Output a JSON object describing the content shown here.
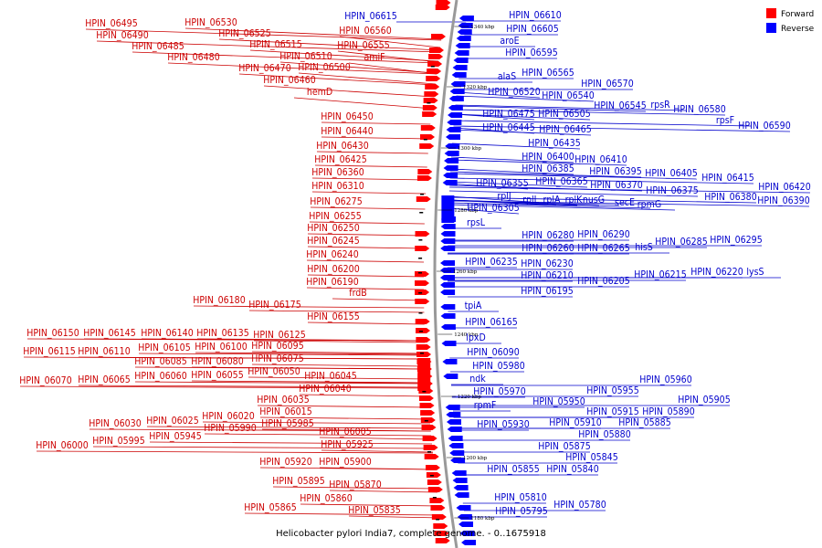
{
  "caption": "Helicobacter pylori India7, complete genome. - 0..1675918",
  "legend": [
    {
      "label": "Forward",
      "color": "#ff0000"
    },
    {
      "label": "Reverse",
      "color": "#0000ff"
    }
  ],
  "colors": {
    "forward": "#ff0000",
    "reverse": "#0000ff",
    "forward_text": "#cc0000",
    "reverse_text": "#0000cc",
    "backbone": "#999999"
  },
  "scale_labels": [
    "1340 kbp",
    "1320 kbp",
    "1300 kbp",
    "1280 kbp",
    "1260 kbp",
    "1240 kbp",
    "1220 kbp",
    "1200 kbp",
    "1180 kbp"
  ],
  "forward_labels": [
    "HPIN_06495",
    "HPIN_06530",
    "HPIN_06490",
    "HPIN_06525",
    "HPIN_06485",
    "HPIN_06515",
    "HPIN_06480",
    "HPIN_06510",
    "HPIN_06470",
    "HPIN_06500",
    "HPIN_06460",
    "hemD",
    "HPIN_06560",
    "HPIN_06555",
    "amiF",
    "HPIN_06450",
    "HPIN_06440",
    "HPIN_06430",
    "HPIN_06425",
    "HPIN_06360",
    "HPIN_06310",
    "HPIN_06275",
    "HPIN_06255",
    "HPIN_06250",
    "HPIN_06245",
    "HPIN_06240",
    "HPIN_06200",
    "HPIN_06190",
    "frdB",
    "HPIN_06180",
    "HPIN_06175",
    "HPIN_06155",
    "HPIN_06150",
    "HPIN_06145",
    "HPIN_06140",
    "HPIN_06135",
    "HPIN_06125",
    "HPIN_06115",
    "HPIN_06110",
    "HPIN_06105",
    "HPIN_06100",
    "HPIN_06095",
    "HPIN_06085",
    "HPIN_06080",
    "HPIN_06075",
    "HPIN_06070",
    "HPIN_06065",
    "HPIN_06060",
    "HPIN_06055",
    "HPIN_06050",
    "HPIN_06045",
    "HPIN_06040",
    "HPIN_06035",
    "HPIN_06020",
    "HPIN_06015",
    "HPIN_06030",
    "HPIN_06025",
    "HPIN_05990",
    "HPIN_05985",
    "HPIN_06000",
    "HPIN_05995",
    "HPIN_05945",
    "HPIN_06005",
    "HPIN_05925",
    "HPIN_05920",
    "HPIN_05900",
    "HPIN_05895",
    "HPIN_05870",
    "HPIN_05860",
    "HPIN_05865",
    "HPIN_05835"
  ],
  "reverse_labels": [
    "HPIN_06615",
    "HPIN_06610",
    "HPIN_06605",
    "aroE",
    "HPIN_06595",
    "HPIN_06565",
    "alaS",
    "HPIN_06570",
    "HPIN_06520",
    "HPIN_06540",
    "HPIN_06545",
    "rpsR",
    "HPIN_06580",
    "rpsF",
    "HPIN_06590",
    "HPIN_06475",
    "HPIN_06505",
    "HPIN_06445",
    "HPIN_06465",
    "HPIN_06435",
    "HPIN_06400",
    "HPIN_06410",
    "HPIN_06385",
    "HPIN_06395",
    "HPIN_06405",
    "HPIN_06415",
    "HPIN_06365",
    "HPIN_06370",
    "HPIN_06375",
    "HPIN_06380",
    "HPIN_06390",
    "HPIN_06420",
    "HPIN_06355",
    "rplJ",
    "rplL",
    "rplA",
    "rplK",
    "nusG",
    "secE",
    "rpmG",
    "HPIN_06305",
    "rpsL",
    "HPIN_06280",
    "HPIN_06290",
    "HPIN_06260",
    "HPIN_06265",
    "hisS",
    "HPIN_06285",
    "HPIN_06295",
    "HPIN_06235",
    "HPIN_06230",
    "HPIN_06210",
    "HPIN_06215",
    "HPIN_06220",
    "lysS",
    "HPIN_06205",
    "HPIN_06195",
    "tpiA",
    "HPIN_06165",
    "lpxD",
    "HPIN_06090",
    "HPIN_05980",
    "ndk",
    "HPIN_05970",
    "HPIN_05960",
    "HPIN_05955",
    "rpmF",
    "HPIN_05950",
    "HPIN_05905",
    "HPIN_05915",
    "HPIN_05890",
    "HPIN_05930",
    "HPIN_05910",
    "HPIN_05885",
    "HPIN_05880",
    "HPIN_05875",
    "HPIN_05845",
    "HPIN_05855",
    "HPIN_05840",
    "HPIN_05810",
    "HPIN_05780",
    "HPIN_05795"
  ]
}
